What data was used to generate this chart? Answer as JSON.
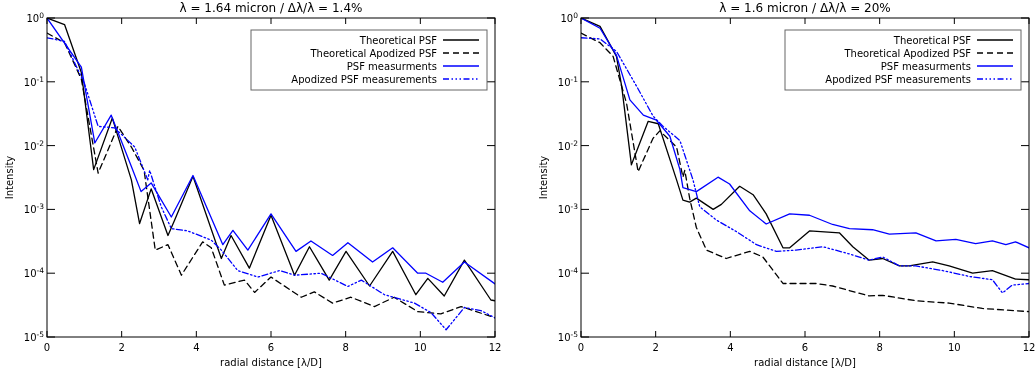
{
  "chart_data": [
    {
      "type": "line",
      "title": "λ = 1.64 micron / Δλ/λ = 1.4%",
      "xlabel": "radial distance [λ/D]",
      "ylabel": "Intensity",
      "log": "y",
      "legend": "top right",
      "xlim": [
        0,
        12
      ],
      "xticks": [
        0,
        2,
        4,
        6,
        8,
        10,
        12
      ],
      "ylim": [
        1e-05,
        1
      ],
      "yticks": [
        {
          "value": 1e-05,
          "label": "10$^{-5}$"
        },
        {
          "value": 0.0001,
          "label": "10$^{-4}$"
        },
        {
          "value": 0.001,
          "label": "10$^{-3}$"
        },
        {
          "value": 0.01,
          "label": "10$^{-2}$"
        },
        {
          "value": 0.1,
          "label": "10$^{-1}$"
        },
        {
          "value": 1,
          "label": "10$^{0}$"
        }
      ],
      "series": [
        {
          "name": "Theoretical PSF",
          "color": "#000000",
          "line_style": "solid",
          "x": [
            0,
            0.47,
            0.92,
            1.25,
            1.75,
            2.26,
            2.48,
            2.79,
            3.24,
            3.42,
            3.91,
            4.67,
            4.93,
            5.42,
            6.0,
            6.63,
            7.03,
            7.56,
            8.01,
            8.64,
            9.26,
            9.88,
            10.2,
            10.64,
            11.18,
            11.89,
            12
          ],
          "values": [
            1,
            0.79,
            0.14,
            0.0042,
            0.027,
            0.0029,
            0.0006,
            0.0021,
            0.00039,
            0.00068,
            0.0033,
            0.00017,
            0.00039,
            0.00012,
            0.00081,
            9.3e-05,
            0.00026,
            7.8e-05,
            0.00022,
            6.3e-05,
            0.00022,
            4.6e-05,
            8.3e-05,
            4.4e-05,
            0.00016,
            3.8e-05,
            3.7e-05
          ]
        },
        {
          "name": "Theoretical Apodized PSF",
          "color": "#000000",
          "line_style": "dashed",
          "x": [
            0,
            0.47,
            0.92,
            1.37,
            1.9,
            2.26,
            2.6,
            2.9,
            3.24,
            3.6,
            4.17,
            4.4,
            4.75,
            5.29,
            5.56,
            6.0,
            6.81,
            7.16,
            7.65,
            8.14,
            8.77,
            9.3,
            9.93,
            10.55,
            11.09,
            12
          ],
          "values": [
            0.58,
            0.41,
            0.11,
            0.0037,
            0.02,
            0.0095,
            0.0041,
            0.00023,
            0.00028,
            9.3e-05,
            0.00031,
            0.00025,
            6.5e-05,
            7.8e-05,
            5e-05,
            8.7e-05,
            4.2e-05,
            5.1e-05,
            3.4e-05,
            4.2e-05,
            3e-05,
            4.2e-05,
            2.5e-05,
            2.3e-05,
            3e-05,
            2e-05
          ]
        },
        {
          "name": "PSF measurments",
          "color": "#0000ff",
          "line_style": "solid",
          "x": [
            0,
            0.92,
            1.28,
            1.72,
            2.26,
            2.52,
            2.79,
            3.33,
            3.91,
            4.71,
            4.98,
            5.38,
            6.0,
            6.67,
            7.07,
            7.65,
            8.06,
            8.72,
            9.26,
            9.93,
            10.15,
            10.6,
            11.18,
            12
          ],
          "values": [
            1,
            0.17,
            0.011,
            0.03,
            0.0047,
            0.0019,
            0.0026,
            0.00076,
            0.0034,
            0.00028,
            0.00047,
            0.00023,
            0.00085,
            0.00022,
            0.00032,
            0.00019,
            0.0003,
            0.00015,
            0.00025,
            0.0001,
            0.0001,
            7.2e-05,
            0.00015,
            6.8e-05
          ]
        },
        {
          "name": "Apodized PSF measurements",
          "color": "#0000ff",
          "line_style": "dashdot",
          "x": [
            0,
            0.47,
            1.0,
            1.37,
            1.81,
            2.35,
            2.7,
            2.75,
            3.06,
            3.33,
            3.77,
            4.4,
            4.67,
            5.11,
            5.65,
            6.23,
            6.63,
            7.34,
            8.06,
            8.42,
            9.04,
            9.84,
            10.29,
            10.69,
            11.18,
            11.62,
            12
          ],
          "values": [
            0.49,
            0.43,
            0.095,
            0.02,
            0.019,
            0.0095,
            0.0029,
            0.0041,
            0.0011,
            0.0005,
            0.00046,
            0.00033,
            0.00023,
            0.00011,
            8.7e-05,
            0.00011,
            9.3e-05,
            0.0001,
            6.2e-05,
            7.8e-05,
            4.6e-05,
            3.4e-05,
            2.4e-05,
            1.3e-05,
            2.9e-05,
            2.6e-05,
            2e-05
          ]
        }
      ]
    },
    {
      "type": "line",
      "title": "λ = 1.6 micron / Δλ/λ = 20%",
      "xlabel": "radial distance [λ/D]",
      "ylabel": "Intensity",
      "log": "y",
      "legend": "top right",
      "xlim": [
        0,
        12
      ],
      "xticks": [
        0,
        2,
        4,
        6,
        8,
        10,
        12
      ],
      "ylim": [
        1e-05,
        1
      ],
      "yticks": [
        {
          "value": 1e-05,
          "label": "10$^{-5}$"
        },
        {
          "value": 0.0001,
          "label": "10$^{-4}$"
        },
        {
          "value": 0.001,
          "label": "10$^{-3}$"
        },
        {
          "value": 0.01,
          "label": "10$^{-2}$"
        },
        {
          "value": 0.1,
          "label": "10$^{-1}$"
        },
        {
          "value": 1,
          "label": "10$^{0}$"
        }
      ],
      "series": [
        {
          "name": "Theoretical PSF",
          "color": "#000000",
          "line_style": "solid",
          "x": [
            0,
            0.51,
            0.95,
            1.09,
            1.35,
            1.8,
            2.07,
            2.56,
            2.73,
            2.91,
            3.09,
            3.54,
            3.76,
            4.25,
            4.61,
            4.96,
            5.41,
            5.59,
            6.12,
            6.92,
            7.28,
            7.72,
            8.08,
            8.53,
            8.79,
            9.42,
            9.86,
            10.49,
            11.02,
            11.64,
            12
          ],
          "values": [
            1,
            0.74,
            0.25,
            0.085,
            0.005,
            0.024,
            0.022,
            0.0029,
            0.0014,
            0.0013,
            0.0015,
            0.001,
            0.0012,
            0.0023,
            0.0017,
            0.00085,
            0.00025,
            0.00025,
            0.00046,
            0.00043,
            0.00026,
            0.00016,
            0.00017,
            0.00013,
            0.00013,
            0.00015,
            0.00013,
            0.0001,
            0.00011,
            8.1e-05,
            7.9e-05
          ]
        },
        {
          "name": "Theoretical Apodized PSF",
          "color": "#000000",
          "line_style": "dashed",
          "x": [
            0,
            0.51,
            0.86,
            1.22,
            1.53,
            1.93,
            2.11,
            2.56,
            2.73,
            2.78,
            2.91,
            3.09,
            3.36,
            3.89,
            4.52,
            4.87,
            5.41,
            6.3,
            6.74,
            7.72,
            8.08,
            8.97,
            9.86,
            10.75,
            12
          ],
          "values": [
            0.58,
            0.41,
            0.25,
            0.046,
            0.0039,
            0.013,
            0.017,
            0.0095,
            0.0032,
            0.0041,
            0.0015,
            0.00052,
            0.00023,
            0.00017,
            0.00022,
            0.00018,
            6.9e-05,
            6.9e-05,
            6.3e-05,
            4.4e-05,
            4.5e-05,
            3.7e-05,
            3.4e-05,
            2.8e-05,
            2.5e-05
          ]
        },
        {
          "name": "PSF measurments",
          "color": "#0000ff",
          "line_style": "solid",
          "x": [
            0,
            0.51,
            0.95,
            1.31,
            1.67,
            2.02,
            2.38,
            2.65,
            2.73,
            3.09,
            3.67,
            3.98,
            4.52,
            4.96,
            5.59,
            6.12,
            6.74,
            7.19,
            7.81,
            8.26,
            8.97,
            9.51,
            10.04,
            10.57,
            11.02,
            11.38,
            11.64,
            12
          ],
          "values": [
            1,
            0.69,
            0.26,
            0.052,
            0.03,
            0.025,
            0.014,
            0.0042,
            0.0022,
            0.0019,
            0.0032,
            0.0025,
            0.00095,
            0.00059,
            0.00085,
            0.00081,
            0.00058,
            0.0005,
            0.00048,
            0.00041,
            0.00043,
            0.00032,
            0.00034,
            0.00029,
            0.00032,
            0.00028,
            0.00031,
            0.00025
          ]
        },
        {
          "name": "Apodized PSF measurements",
          "color": "#0000ff",
          "line_style": "dashdot",
          "x": [
            0,
            0.51,
            0.95,
            1.49,
            1.93,
            2.2,
            2.65,
            3.0,
            3.18,
            3.63,
            4.16,
            4.7,
            5.23,
            5.76,
            6.48,
            7.19,
            7.72,
            8.08,
            8.53,
            8.97,
            9.69,
            10.4,
            11.02,
            11.29,
            11.55,
            12
          ],
          "values": [
            0.49,
            0.47,
            0.3,
            0.085,
            0.029,
            0.02,
            0.012,
            0.0029,
            0.0011,
            0.00068,
            0.00045,
            0.00028,
            0.00022,
            0.00023,
            0.00026,
            0.0002,
            0.00016,
            0.00018,
            0.00013,
            0.00013,
            0.00011,
            8.9e-05,
            7.9e-05,
            4.9e-05,
            6.5e-05,
            6.9e-05
          ]
        }
      ]
    }
  ]
}
